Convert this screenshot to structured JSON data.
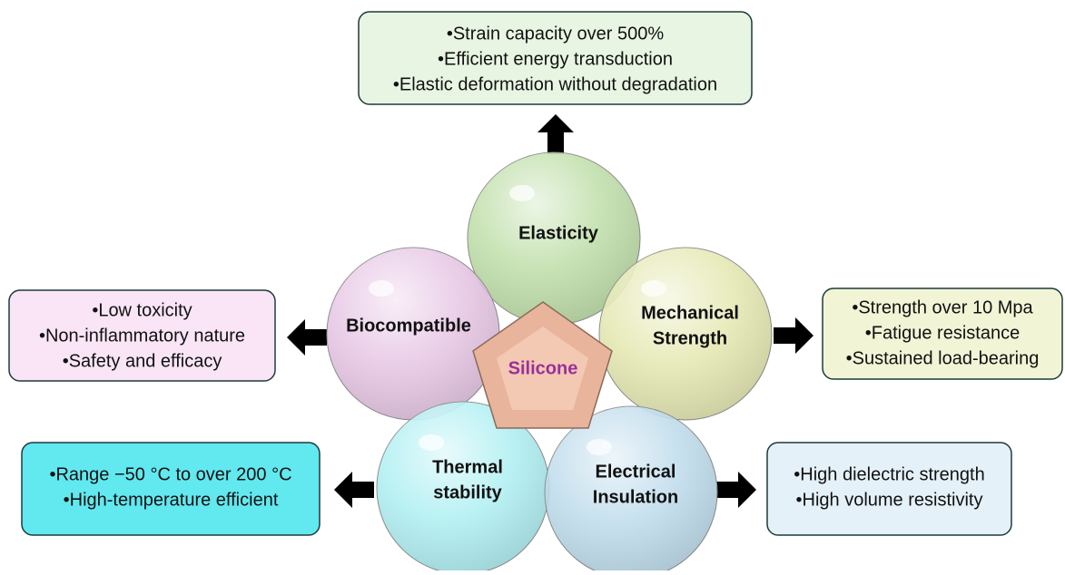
{
  "center": {
    "label": "Silicone"
  },
  "nodes": [
    {
      "label": [
        "Elasticity"
      ],
      "details": [
        "•Strain capacity over 500%",
        "•Efficient energy transduction",
        "•Elastic deformation without degradation"
      ]
    },
    {
      "label": [
        "Biocompatible"
      ],
      "details": [
        "•Low toxicity",
        "•Non-inflammatory nature",
        "•Safety and efficacy"
      ]
    },
    {
      "label": [
        "Mechanical",
        "Strength"
      ],
      "details": [
        "•Strength over 10 Mpa",
        "•Fatigue resistance",
        "•Sustained load-bearing"
      ]
    },
    {
      "label": [
        "Thermal",
        "stability"
      ],
      "details": [
        "•Range −50 °C to over 200 °C",
        "•High-temperature efficient"
      ]
    },
    {
      "label": [
        "Electrical",
        "Insulation"
      ],
      "details": [
        "•High dielectric strength",
        "•High volume resistivity"
      ]
    }
  ]
}
